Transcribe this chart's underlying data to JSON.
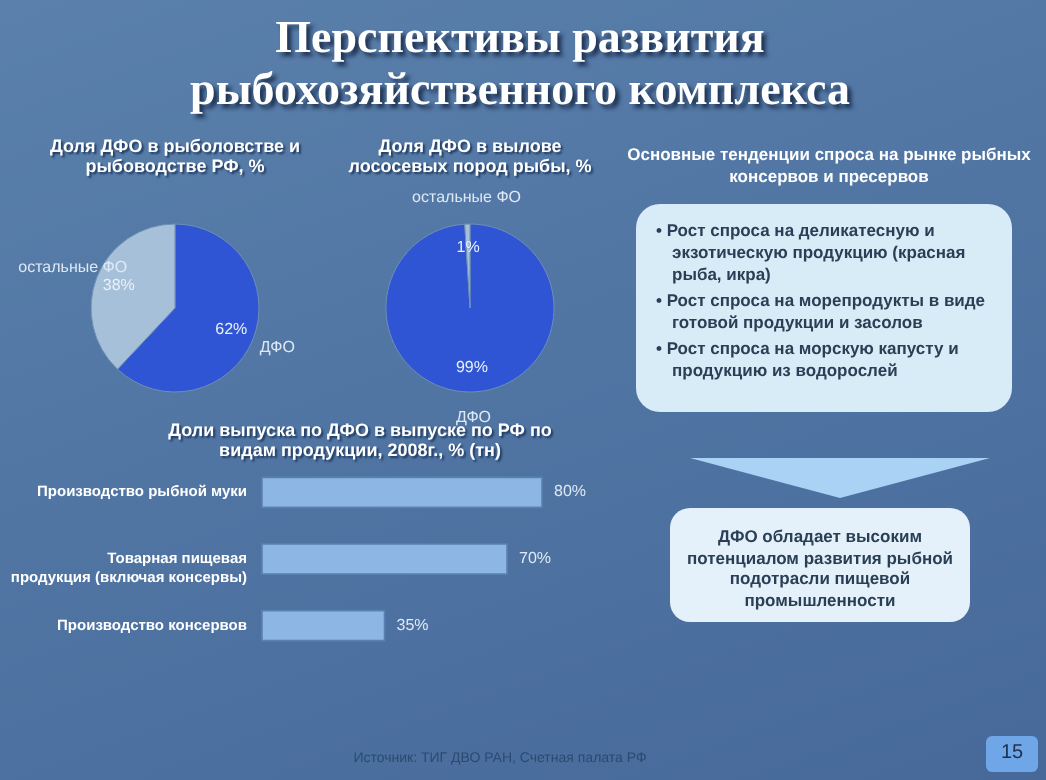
{
  "chart_data": [
    {
      "type": "other",
      "title": "Перспективы развития рыбохозяйственного комплекса",
      "annotations": [
        "Основные тенденции спроса на рынке рыбных консервов и пресервов",
        "• Рост спроса на деликатесную и экзотическую продукцию (красная рыба, икра)",
        "• Рост спроса на морепродукты в виде готовой продукции и засолов",
        "• Рост спроса на морскую капусту и продукцию из водорослей",
        "ДФО обладает высоким потенциалом развития рыбной подотрасли пищевой промышленности",
        "Источник: ТИГ ДВО РАН, Счетная палата РФ",
        "15"
      ]
    },
    {
      "type": "pie",
      "title": "Доля ДФО в рыболовстве и рыбоводстве РФ, %",
      "categories": [
        "ДФО",
        "остальные ФО"
      ],
      "values": [
        62,
        38
      ],
      "value_labels": [
        "62%",
        "38%"
      ],
      "colors": [
        "#2f55d4",
        "#a7c0da"
      ]
    },
    {
      "type": "pie",
      "title": "Доля ДФО в вылове лососевых пород рыбы, %",
      "categories": [
        "ДФО",
        "остальные ФО"
      ],
      "values": [
        99,
        1
      ],
      "value_labels": [
        "99%",
        "1%"
      ],
      "colors": [
        "#2f55d4",
        "#a7c0da"
      ]
    },
    {
      "type": "bar",
      "orientation": "horizontal",
      "title": "Доли выпуска по ДФО в выпуске по РФ по видам продукции, 2008г., % (тн)",
      "categories": [
        "Производство рыбной муки",
        "Товарная пищевая продукция (включая консервы)",
        "Производство консервов"
      ],
      "values": [
        80,
        70,
        35
      ],
      "value_labels": [
        "80%",
        "70%",
        "35%"
      ],
      "color": "#8db6e4"
    }
  ]
}
